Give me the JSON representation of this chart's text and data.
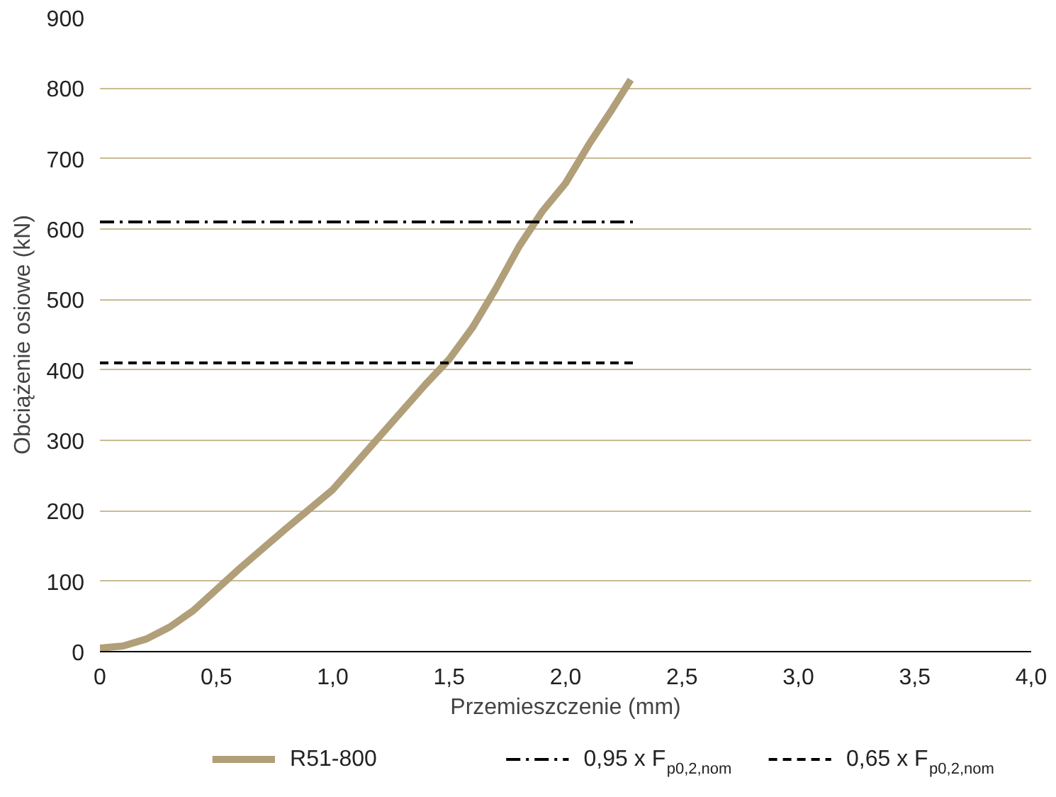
{
  "chart_data": {
    "type": "line",
    "xlabel": "Przemieszczenie (mm)",
    "ylabel": "Obciążenie osiowe (kN)",
    "xlim": [
      0,
      4
    ],
    "ylim": [
      0,
      900
    ],
    "xticks": [
      {
        "value": 0,
        "label": "0"
      },
      {
        "value": 0.5,
        "label": "0,5"
      },
      {
        "value": 1,
        "label": "1,0"
      },
      {
        "value": 1.5,
        "label": "1,5"
      },
      {
        "value": 2,
        "label": "2,0"
      },
      {
        "value": 2.5,
        "label": "2,5"
      },
      {
        "value": 3,
        "label": "3,0"
      },
      {
        "value": 3.5,
        "label": "3,5"
      },
      {
        "value": 4,
        "label": "4,0"
      }
    ],
    "yticks": [
      0,
      100,
      200,
      300,
      400,
      500,
      600,
      700,
      800,
      900
    ],
    "grid": "y",
    "legend": "bottom",
    "series": [
      {
        "name": "R51-800",
        "color": "#b09f78",
        "line_style": "solid",
        "x": [
          0,
          0.1,
          0.2,
          0.3,
          0.4,
          0.5,
          0.6,
          0.8,
          1.0,
          1.2,
          1.4,
          1.5,
          1.6,
          1.7,
          1.8,
          1.9,
          2.0,
          2.1,
          2.2,
          2.28
        ],
        "values": [
          5,
          8,
          18,
          35,
          58,
          88,
          118,
          175,
          230,
          305,
          380,
          415,
          460,
          515,
          575,
          625,
          665,
          720,
          770,
          812
        ]
      },
      {
        "name": "0,95 x F$_{p0,2,nom}$",
        "color": "#000000",
        "line_style": "dashdot",
        "x": [
          0,
          2.3
        ],
        "values": [
          610,
          610
        ]
      },
      {
        "name": "0,65 x F$_{p0,2,nom}$",
        "color": "#000000",
        "line_style": "dashed",
        "x": [
          0,
          2.3
        ],
        "values": [
          410,
          410
        ]
      }
    ]
  }
}
